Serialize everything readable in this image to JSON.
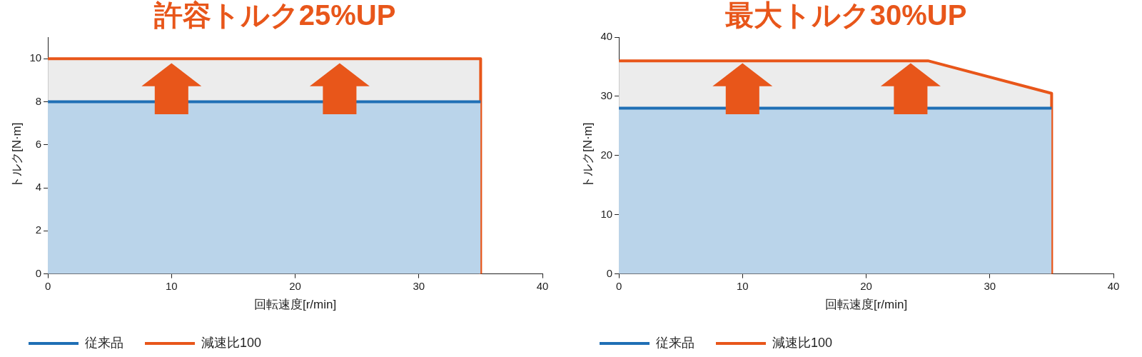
{
  "chart_data": [
    {
      "type": "area",
      "title": "許容トルク25%UP",
      "xlabel": "回転速度[r/min]",
      "ylabel": "トルク[N·m]",
      "xlim": [
        0,
        40
      ],
      "xticks": [
        0,
        10,
        20,
        30,
        40
      ],
      "ylim": [
        0,
        11
      ],
      "yticks": [
        0,
        2,
        4,
        6,
        8,
        10
      ],
      "grid": false,
      "legend": "bottom left",
      "series": [
        {
          "name": "減速比100",
          "color": "#e8561a",
          "x": [
            0,
            35,
            35
          ],
          "values": [
            10,
            10,
            0
          ]
        },
        {
          "name": "従来品",
          "color": "#1f6fb5",
          "x": [
            0,
            35
          ],
          "values": [
            8,
            8
          ]
        }
      ]
    },
    {
      "type": "area",
      "title": "最大トルク30%UP",
      "xlabel": "回転速度[r/min]",
      "ylabel": "トルク[N·m]",
      "xlim": [
        0,
        40
      ],
      "xticks": [
        0,
        10,
        20,
        30,
        40
      ],
      "ylim": [
        0,
        40
      ],
      "yticks": [
        0,
        10,
        20,
        30,
        40
      ],
      "grid": false,
      "legend": "bottom left",
      "series": [
        {
          "name": "減速比100",
          "color": "#e8561a",
          "x": [
            0,
            25,
            35,
            35
          ],
          "values": [
            36,
            36,
            30.5,
            0
          ]
        },
        {
          "name": "従来品",
          "color": "#1f6fb5",
          "x": [
            0,
            35
          ],
          "values": [
            28,
            28
          ]
        }
      ]
    }
  ]
}
